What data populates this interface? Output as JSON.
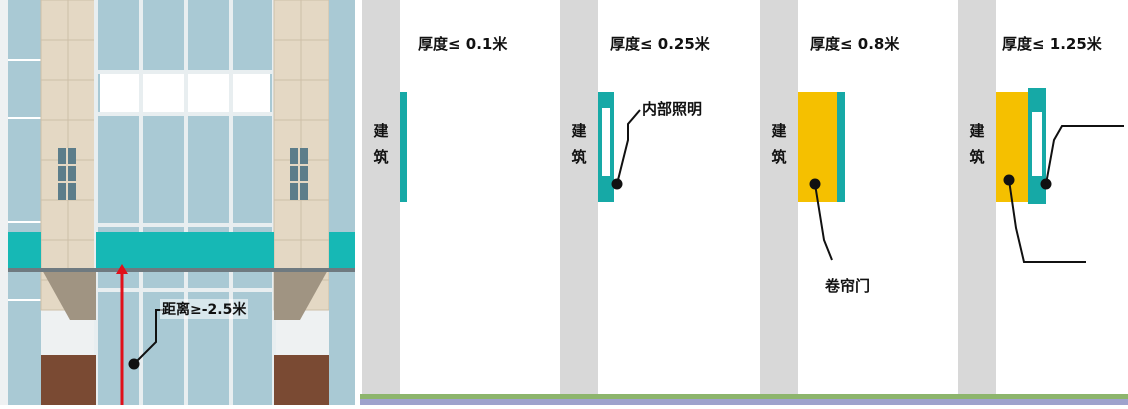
{
  "facade": {
    "distance_label": "距离≥-2.5米"
  },
  "panels": [
    {
      "thickness_label": "厚度≤ 0.1米",
      "building_label": [
        "建",
        "筑"
      ]
    },
    {
      "thickness_label": "厚度≤ 0.25米",
      "building_label": [
        "建",
        "筑"
      ],
      "callout": "内部照明"
    },
    {
      "thickness_label": "厚度≤ 0.8米",
      "building_label": [
        "建",
        "筑"
      ],
      "callout": "卷帘门"
    },
    {
      "thickness_label": "厚度≤ 1.25米",
      "building_label": [
        "建",
        "筑"
      ]
    }
  ],
  "colors": {
    "sign_teal": "#16a9a6",
    "shutter_yellow": "#f5c000",
    "wall_gray": "#d8d8d8",
    "ground_green": "#8db56c",
    "ground_purple": "#9ea2cc",
    "arrow_red": "#e0101a"
  }
}
